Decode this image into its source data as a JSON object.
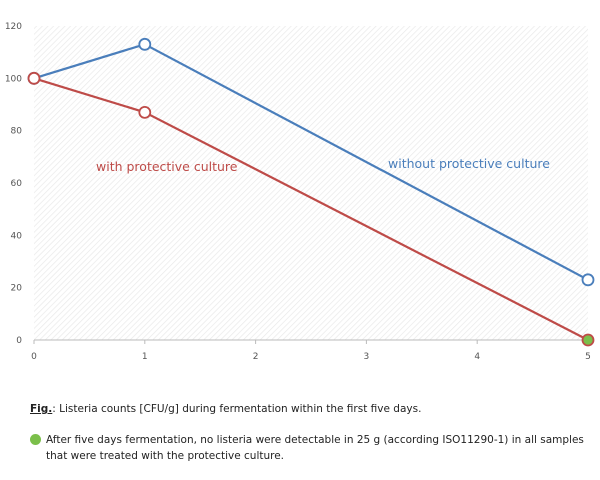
{
  "chart_data": {
    "type": "line",
    "x": [
      0,
      1,
      5
    ],
    "xticks": [
      0,
      1,
      2,
      3,
      4,
      5
    ],
    "yticks": [
      0,
      20,
      40,
      60,
      80,
      100,
      120
    ],
    "xlim": [
      0,
      5
    ],
    "ylim": [
      0,
      120
    ],
    "grid": false,
    "series": [
      {
        "name": "without protective culture",
        "color": "#4a7ebb",
        "values": [
          100,
          113,
          23
        ]
      },
      {
        "name": "with protective culture",
        "color": "#be4b48",
        "values": [
          100,
          87,
          0
        ]
      }
    ],
    "endpoint_marker_color": "#7bbf4a"
  },
  "caption": {
    "fig_label": "Fig.",
    "text": ": Listeria counts [CFU/g] during fermentation within the first five days."
  },
  "note": {
    "text": "After five days fermentation, no listeria were detectable in 25 g (according ISO11290-1) in all samples that were treated with the protective culture."
  }
}
